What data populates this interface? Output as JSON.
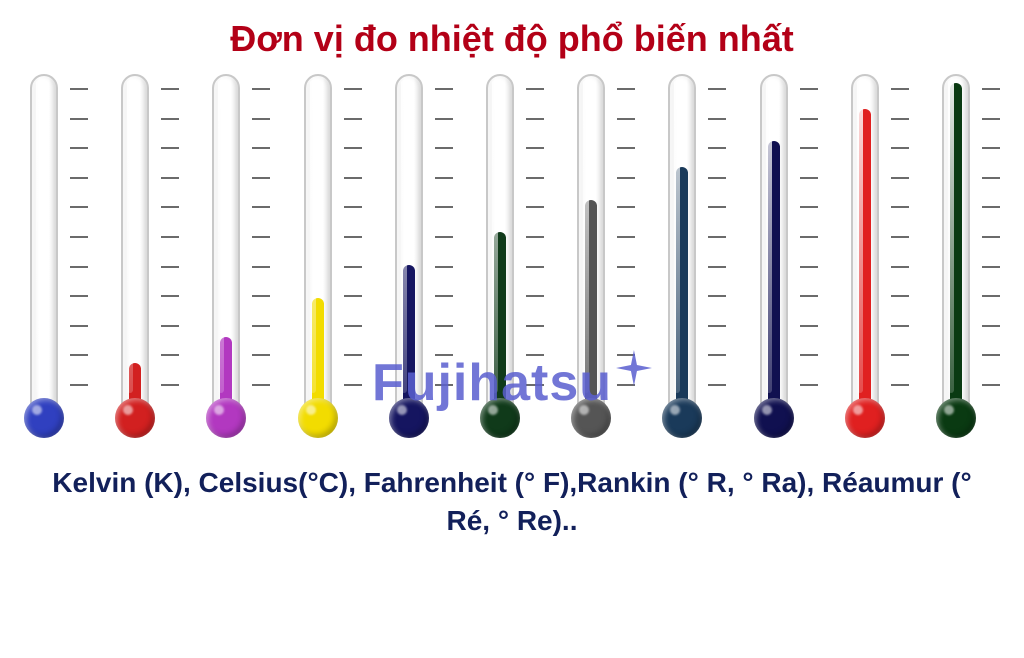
{
  "title": {
    "text": "Đơn vị đo nhiệt độ phổ biến nhất",
    "color": "#b30017",
    "fontsize": 36
  },
  "thermometers": {
    "tube_height": 330,
    "tube_width": 28,
    "bulb_diameter": 40,
    "tube_border_color": "#c8c8c8",
    "tube_bg_light": "#ffffff",
    "tube_bg_shadow": "#e6e6e6",
    "tick_count": 11,
    "tick_color": "#6b6b6b",
    "tick_width": 18,
    "items": [
      {
        "color": "#3040c0",
        "fill_percent": 0
      },
      {
        "color": "#d22020",
        "fill_percent": 12
      },
      {
        "color": "#b238c0",
        "fill_percent": 20
      },
      {
        "color": "#f2dc00",
        "fill_percent": 32
      },
      {
        "color": "#151560",
        "fill_percent": 42
      },
      {
        "color": "#103a1a",
        "fill_percent": 52
      },
      {
        "color": "#555555",
        "fill_percent": 62
      },
      {
        "color": "#1a3a5a",
        "fill_percent": 72
      },
      {
        "color": "#101050",
        "fill_percent": 80
      },
      {
        "color": "#e02020",
        "fill_percent": 90
      },
      {
        "color": "#0a3a12",
        "fill_percent": 98
      }
    ]
  },
  "watermark": {
    "text": "Fujihatsu",
    "color": "#5a5fd0",
    "fontsize": 52,
    "star_color": "#5a5fd0"
  },
  "footer": {
    "text": "Kelvin (K), Celsius(°C), Fahrenheit (° F),Rankin (° R, ° Ra),  Réaumur (° Ré, ° Re)..",
    "color": "#12205a",
    "fontsize": 28
  },
  "background_color": "#ffffff"
}
